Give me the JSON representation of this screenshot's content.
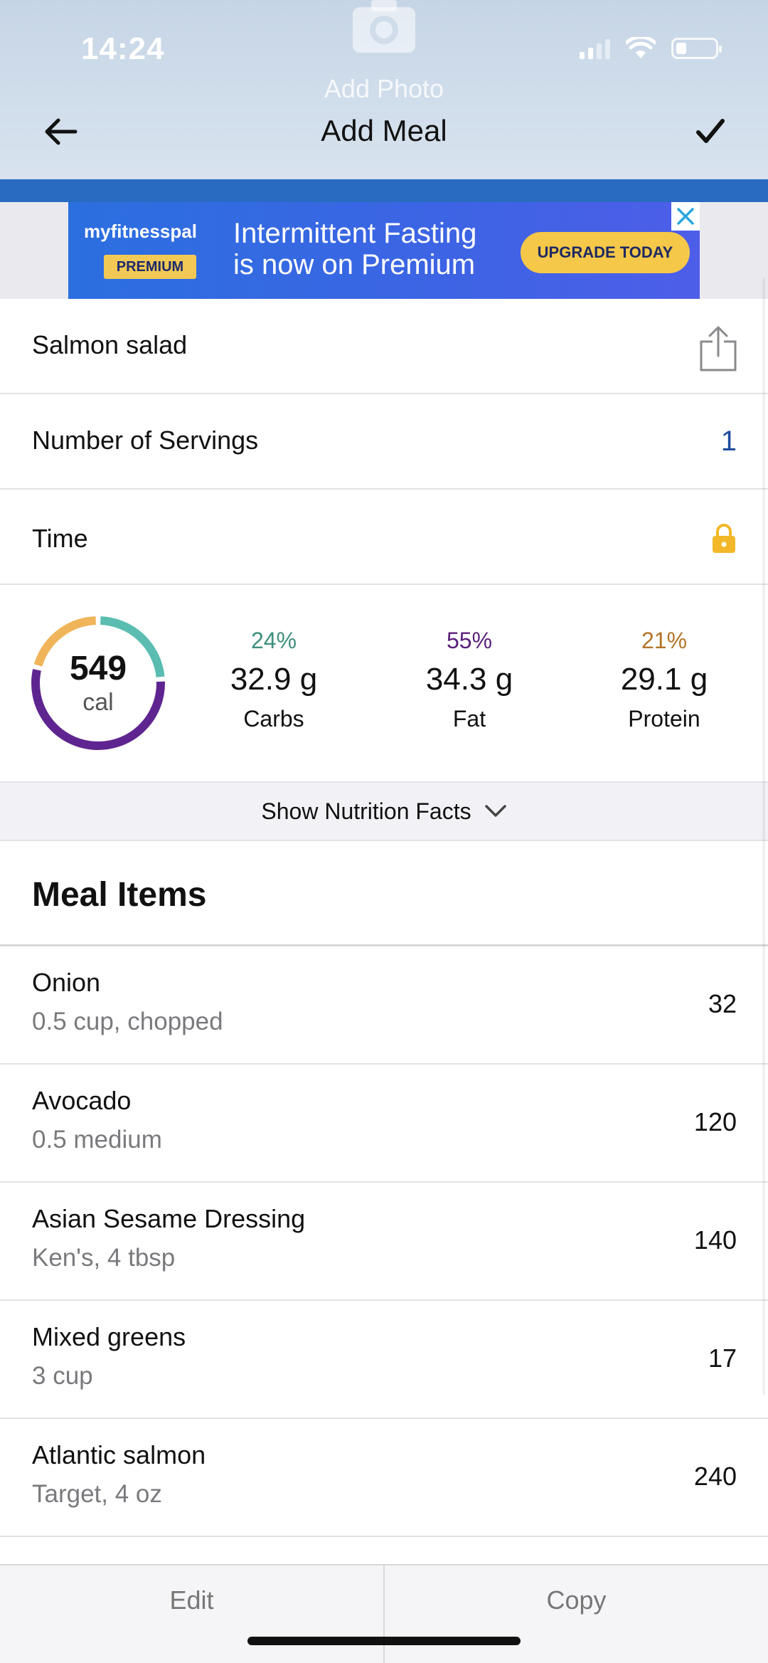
{
  "status_bar": {
    "time": "14:24"
  },
  "header": {
    "add_photo_label": "Add Photo",
    "title": "Add Meal",
    "back_icon": "arrow-left-icon",
    "confirm_icon": "checkmark-icon"
  },
  "ad": {
    "brand": "myfitnesspal",
    "badge": "PREMIUM",
    "headline_line1": "Intermittent Fasting",
    "headline_line2": "is now on Premium",
    "cta": "UPGRADE TODAY"
  },
  "meal": {
    "name": "Salmon salad",
    "servings_label": "Number of Servings",
    "servings_value": "1",
    "time_label": "Time"
  },
  "summary": {
    "calories": "549",
    "calories_unit": "cal",
    "macros": [
      {
        "key": "carbs",
        "percent": "24%",
        "grams": "32.9 g",
        "label": "Carbs",
        "color": "#3f8f7d"
      },
      {
        "key": "fat",
        "percent": "55%",
        "grams": "34.3 g",
        "label": "Fat",
        "color": "#5a1f7a"
      },
      {
        "key": "protein",
        "percent": "21%",
        "grams": "29.1 g",
        "label": "Protein",
        "color": "#b2742a"
      }
    ],
    "ring_colors": {
      "carbs": "#5bbdb1",
      "fat": "#5e2590",
      "protein": "#f0b45a"
    },
    "ring_fractions": {
      "carbs": 0.24,
      "fat": 0.55,
      "protein": 0.21
    }
  },
  "nutrition_toggle": {
    "label": "Show Nutrition Facts"
  },
  "meal_items": {
    "title": "Meal Items",
    "items": [
      {
        "name": "Onion",
        "desc": "0.5 cup, chopped",
        "calories": "32"
      },
      {
        "name": "Avocado",
        "desc": "0.5 medium",
        "calories": "120"
      },
      {
        "name": "Asian Sesame Dressing",
        "desc": "Ken's, 4 tbsp",
        "calories": "140"
      },
      {
        "name": "Mixed greens",
        "desc": "3 cup",
        "calories": "17"
      },
      {
        "name": "Atlantic salmon",
        "desc": "Target, 4 oz",
        "calories": "240"
      }
    ]
  },
  "bottom_bar": {
    "edit_label": "Edit",
    "copy_label": "Copy"
  }
}
